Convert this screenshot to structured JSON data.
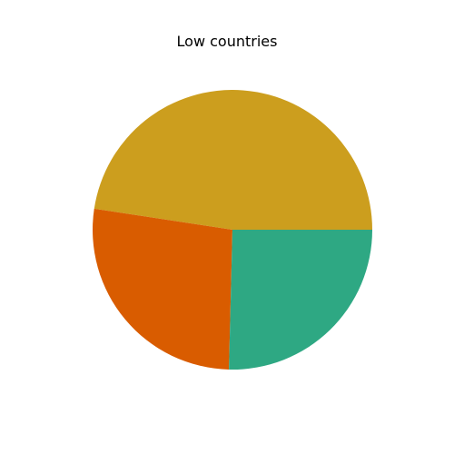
{
  "chart_data": {
    "type": "pie",
    "title": "Low countries",
    "slices": [
      {
        "value": 47.6,
        "color": "#cc9e1e"
      },
      {
        "value": 27.0,
        "color": "#d95c00"
      },
      {
        "value": 25.4,
        "color": "#2ea883"
      }
    ],
    "start_angle_deg": 0,
    "direction": "counterclockwise",
    "legend": "none"
  }
}
